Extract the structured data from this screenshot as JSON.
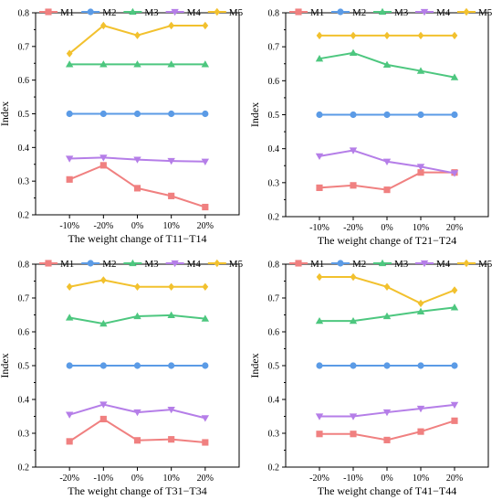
{
  "chart_data": [
    {
      "type": "line",
      "xlabel": "The weight change of T11−T14",
      "ylabel": "Index",
      "categories": [
        "-10%",
        "-20%",
        "0%",
        "10%",
        "20%"
      ],
      "ylim": [
        0.2,
        0.8
      ],
      "yticks": [
        0.2,
        0.3,
        0.4,
        0.5,
        0.6,
        0.7,
        0.8
      ],
      "legend": "top",
      "grid": false,
      "series": [
        {
          "name": "M1",
          "values": [
            0.305,
            0.347,
            0.279,
            0.256,
            0.223
          ]
        },
        {
          "name": "M2",
          "values": [
            0.5,
            0.5,
            0.5,
            0.5,
            0.5
          ]
        },
        {
          "name": "M3",
          "values": [
            0.647,
            0.647,
            0.647,
            0.647,
            0.647
          ]
        },
        {
          "name": "M4",
          "values": [
            0.367,
            0.37,
            0.364,
            0.36,
            0.358
          ]
        },
        {
          "name": "M5",
          "values": [
            0.679,
            0.762,
            0.733,
            0.762,
            0.762
          ]
        }
      ]
    },
    {
      "type": "line",
      "xlabel": "The weight change of T21−T24",
      "ylabel": "Index",
      "categories": [
        "-10%",
        "-20%",
        "0%",
        "10%",
        "20%"
      ],
      "ylim": [
        0.2,
        0.8
      ],
      "yticks": [
        0.2,
        0.3,
        0.4,
        0.5,
        0.6,
        0.7,
        0.8
      ],
      "legend": "top",
      "grid": false,
      "series": [
        {
          "name": "M1",
          "values": [
            0.285,
            0.292,
            0.279,
            0.33,
            0.33
          ]
        },
        {
          "name": "M2",
          "values": [
            0.5,
            0.5,
            0.5,
            0.5,
            0.5
          ]
        },
        {
          "name": "M3",
          "values": [
            0.665,
            0.682,
            0.647,
            0.629,
            0.61
          ]
        },
        {
          "name": "M4",
          "values": [
            0.378,
            0.395,
            0.362,
            0.347,
            0.328
          ]
        },
        {
          "name": "M5",
          "values": [
            0.733,
            0.733,
            0.733,
            0.733,
            0.733
          ]
        }
      ]
    },
    {
      "type": "line",
      "xlabel": "The weight change of T31−T34",
      "ylabel": "Index",
      "categories": [
        "-20%",
        "-10%",
        "0%",
        "10%",
        "20%"
      ],
      "ylim": [
        0.2,
        0.8
      ],
      "yticks": [
        0.2,
        0.3,
        0.4,
        0.5,
        0.6,
        0.7,
        0.8
      ],
      "legend": "top",
      "grid": false,
      "series": [
        {
          "name": "M1",
          "values": [
            0.276,
            0.342,
            0.279,
            0.282,
            0.273
          ]
        },
        {
          "name": "M2",
          "values": [
            0.5,
            0.5,
            0.5,
            0.5,
            0.5
          ]
        },
        {
          "name": "M3",
          "values": [
            0.642,
            0.624,
            0.646,
            0.649,
            0.639
          ]
        },
        {
          "name": "M4",
          "values": [
            0.355,
            0.385,
            0.362,
            0.37,
            0.345
          ]
        },
        {
          "name": "M5",
          "values": [
            0.733,
            0.753,
            0.733,
            0.733,
            0.733
          ]
        }
      ]
    },
    {
      "type": "line",
      "xlabel": "The weight change of T41−T44",
      "ylabel": "Index",
      "categories": [
        "-20%",
        "-10%",
        "0%",
        "10%",
        "20%"
      ],
      "ylim": [
        0.2,
        0.8
      ],
      "yticks": [
        0.2,
        0.3,
        0.4,
        0.5,
        0.6,
        0.7,
        0.8
      ],
      "legend": "top",
      "grid": false,
      "series": [
        {
          "name": "M1",
          "values": [
            0.298,
            0.298,
            0.28,
            0.305,
            0.337
          ]
        },
        {
          "name": "M2",
          "values": [
            0.5,
            0.5,
            0.5,
            0.5,
            0.5
          ]
        },
        {
          "name": "M3",
          "values": [
            0.632,
            0.632,
            0.646,
            0.66,
            0.672
          ]
        },
        {
          "name": "M4",
          "values": [
            0.35,
            0.35,
            0.362,
            0.373,
            0.384
          ]
        },
        {
          "name": "M5",
          "values": [
            0.762,
            0.762,
            0.733,
            0.684,
            0.723
          ]
        }
      ]
    }
  ],
  "series_styles": [
    {
      "name": "M1",
      "color": "#F08080",
      "marker": "square"
    },
    {
      "name": "M2",
      "color": "#5B9BE6",
      "marker": "circle"
    },
    {
      "name": "M3",
      "color": "#4DC77F",
      "marker": "triangle-up"
    },
    {
      "name": "M4",
      "color": "#B57EE8",
      "marker": "triangle-down"
    },
    {
      "name": "M5",
      "color": "#F2C12E",
      "marker": "diamond"
    }
  ]
}
